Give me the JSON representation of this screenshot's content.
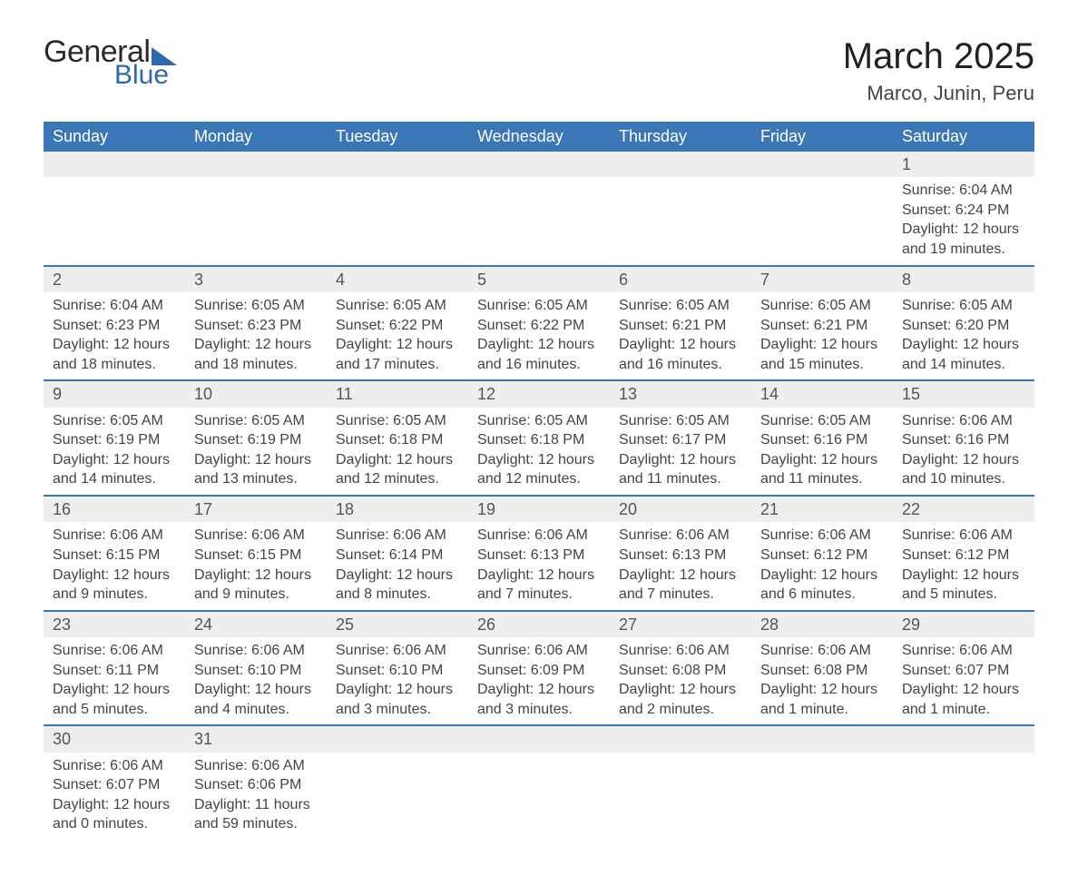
{
  "logo": {
    "text_general": "General",
    "text_blue": "Blue"
  },
  "title": "March 2025",
  "location": "Marco, Junin, Peru",
  "colors": {
    "header_bg": "#3b76b6",
    "header_text": "#ffffff",
    "daynum_bg": "#eeeeee",
    "border": "#3b76b6",
    "body_text": "#444444",
    "logo_blue": "#2f6aa8"
  },
  "day_headers": [
    "Sunday",
    "Monday",
    "Tuesday",
    "Wednesday",
    "Thursday",
    "Friday",
    "Saturday"
  ],
  "weeks": [
    [
      null,
      null,
      null,
      null,
      null,
      null,
      {
        "n": "1",
        "sunrise": "Sunrise: 6:04 AM",
        "sunset": "Sunset: 6:24 PM",
        "daylight": "Daylight: 12 hours and 19 minutes."
      }
    ],
    [
      {
        "n": "2",
        "sunrise": "Sunrise: 6:04 AM",
        "sunset": "Sunset: 6:23 PM",
        "daylight": "Daylight: 12 hours and 18 minutes."
      },
      {
        "n": "3",
        "sunrise": "Sunrise: 6:05 AM",
        "sunset": "Sunset: 6:23 PM",
        "daylight": "Daylight: 12 hours and 18 minutes."
      },
      {
        "n": "4",
        "sunrise": "Sunrise: 6:05 AM",
        "sunset": "Sunset: 6:22 PM",
        "daylight": "Daylight: 12 hours and 17 minutes."
      },
      {
        "n": "5",
        "sunrise": "Sunrise: 6:05 AM",
        "sunset": "Sunset: 6:22 PM",
        "daylight": "Daylight: 12 hours and 16 minutes."
      },
      {
        "n": "6",
        "sunrise": "Sunrise: 6:05 AM",
        "sunset": "Sunset: 6:21 PM",
        "daylight": "Daylight: 12 hours and 16 minutes."
      },
      {
        "n": "7",
        "sunrise": "Sunrise: 6:05 AM",
        "sunset": "Sunset: 6:21 PM",
        "daylight": "Daylight: 12 hours and 15 minutes."
      },
      {
        "n": "8",
        "sunrise": "Sunrise: 6:05 AM",
        "sunset": "Sunset: 6:20 PM",
        "daylight": "Daylight: 12 hours and 14 minutes."
      }
    ],
    [
      {
        "n": "9",
        "sunrise": "Sunrise: 6:05 AM",
        "sunset": "Sunset: 6:19 PM",
        "daylight": "Daylight: 12 hours and 14 minutes."
      },
      {
        "n": "10",
        "sunrise": "Sunrise: 6:05 AM",
        "sunset": "Sunset: 6:19 PM",
        "daylight": "Daylight: 12 hours and 13 minutes."
      },
      {
        "n": "11",
        "sunrise": "Sunrise: 6:05 AM",
        "sunset": "Sunset: 6:18 PM",
        "daylight": "Daylight: 12 hours and 12 minutes."
      },
      {
        "n": "12",
        "sunrise": "Sunrise: 6:05 AM",
        "sunset": "Sunset: 6:18 PM",
        "daylight": "Daylight: 12 hours and 12 minutes."
      },
      {
        "n": "13",
        "sunrise": "Sunrise: 6:05 AM",
        "sunset": "Sunset: 6:17 PM",
        "daylight": "Daylight: 12 hours and 11 minutes."
      },
      {
        "n": "14",
        "sunrise": "Sunrise: 6:05 AM",
        "sunset": "Sunset: 6:16 PM",
        "daylight": "Daylight: 12 hours and 11 minutes."
      },
      {
        "n": "15",
        "sunrise": "Sunrise: 6:06 AM",
        "sunset": "Sunset: 6:16 PM",
        "daylight": "Daylight: 12 hours and 10 minutes."
      }
    ],
    [
      {
        "n": "16",
        "sunrise": "Sunrise: 6:06 AM",
        "sunset": "Sunset: 6:15 PM",
        "daylight": "Daylight: 12 hours and 9 minutes."
      },
      {
        "n": "17",
        "sunrise": "Sunrise: 6:06 AM",
        "sunset": "Sunset: 6:15 PM",
        "daylight": "Daylight: 12 hours and 9 minutes."
      },
      {
        "n": "18",
        "sunrise": "Sunrise: 6:06 AM",
        "sunset": "Sunset: 6:14 PM",
        "daylight": "Daylight: 12 hours and 8 minutes."
      },
      {
        "n": "19",
        "sunrise": "Sunrise: 6:06 AM",
        "sunset": "Sunset: 6:13 PM",
        "daylight": "Daylight: 12 hours and 7 minutes."
      },
      {
        "n": "20",
        "sunrise": "Sunrise: 6:06 AM",
        "sunset": "Sunset: 6:13 PM",
        "daylight": "Daylight: 12 hours and 7 minutes."
      },
      {
        "n": "21",
        "sunrise": "Sunrise: 6:06 AM",
        "sunset": "Sunset: 6:12 PM",
        "daylight": "Daylight: 12 hours and 6 minutes."
      },
      {
        "n": "22",
        "sunrise": "Sunrise: 6:06 AM",
        "sunset": "Sunset: 6:12 PM",
        "daylight": "Daylight: 12 hours and 5 minutes."
      }
    ],
    [
      {
        "n": "23",
        "sunrise": "Sunrise: 6:06 AM",
        "sunset": "Sunset: 6:11 PM",
        "daylight": "Daylight: 12 hours and 5 minutes."
      },
      {
        "n": "24",
        "sunrise": "Sunrise: 6:06 AM",
        "sunset": "Sunset: 6:10 PM",
        "daylight": "Daylight: 12 hours and 4 minutes."
      },
      {
        "n": "25",
        "sunrise": "Sunrise: 6:06 AM",
        "sunset": "Sunset: 6:10 PM",
        "daylight": "Daylight: 12 hours and 3 minutes."
      },
      {
        "n": "26",
        "sunrise": "Sunrise: 6:06 AM",
        "sunset": "Sunset: 6:09 PM",
        "daylight": "Daylight: 12 hours and 3 minutes."
      },
      {
        "n": "27",
        "sunrise": "Sunrise: 6:06 AM",
        "sunset": "Sunset: 6:08 PM",
        "daylight": "Daylight: 12 hours and 2 minutes."
      },
      {
        "n": "28",
        "sunrise": "Sunrise: 6:06 AM",
        "sunset": "Sunset: 6:08 PM",
        "daylight": "Daylight: 12 hours and 1 minute."
      },
      {
        "n": "29",
        "sunrise": "Sunrise: 6:06 AM",
        "sunset": "Sunset: 6:07 PM",
        "daylight": "Daylight: 12 hours and 1 minute."
      }
    ],
    [
      {
        "n": "30",
        "sunrise": "Sunrise: 6:06 AM",
        "sunset": "Sunset: 6:07 PM",
        "daylight": "Daylight: 12 hours and 0 minutes."
      },
      {
        "n": "31",
        "sunrise": "Sunrise: 6:06 AM",
        "sunset": "Sunset: 6:06 PM",
        "daylight": "Daylight: 11 hours and 59 minutes."
      },
      null,
      null,
      null,
      null,
      null
    ]
  ]
}
